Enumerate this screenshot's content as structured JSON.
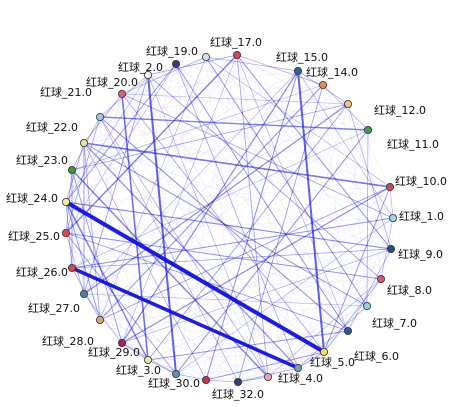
{
  "edge_color": "#1010e6",
  "nodes": [
    {
      "id": "n17",
      "label": "红球_17.0",
      "color": "#d9455a"
    },
    {
      "id": "n15",
      "label": "红球_15.0",
      "color": "#2e5fa8"
    },
    {
      "id": "n14",
      "label": "红球_14.0",
      "color": "#e8885a"
    },
    {
      "id": "n12",
      "label": "红球_12.0",
      "color": "#f2c46b"
    },
    {
      "id": "n11",
      "label": "红球_11.0",
      "color": "#3aa14a"
    },
    {
      "id": "n10",
      "label": "红球_10.0",
      "color": "#d64550"
    },
    {
      "id": "n1",
      "label": "红球_1.0",
      "color": "#9fd3e6"
    },
    {
      "id": "n9",
      "label": "红球_9.0",
      "color": "#23507a"
    },
    {
      "id": "n8",
      "label": "红球_8.0",
      "color": "#d45a63"
    },
    {
      "id": "n7",
      "label": "红球_7.0",
      "color": "#8fd0e0"
    },
    {
      "id": "n6",
      "label": "红球_6.0",
      "color": "#2a5f86"
    },
    {
      "id": "n5",
      "label": "红球_5.0",
      "color": "#f4e24a"
    },
    {
      "id": "n4",
      "label": "红球_4.0",
      "color": "#6fa0c0"
    },
    {
      "id": "n32",
      "label": "红球_32.0",
      "color": "#f0a0b8"
    },
    {
      "id": "n31",
      "label": "",
      "color": "#2e3f78"
    },
    {
      "id": "n30a",
      "label": "",
      "color": "#d12f3a"
    },
    {
      "id": "n30",
      "label": "红球_30.0",
      "color": "#5f8fb0"
    },
    {
      "id": "n3",
      "label": "红球_3.0",
      "color": "#e0e89a"
    },
    {
      "id": "n29",
      "label": "红球_29.0",
      "color": "#b02050"
    },
    {
      "id": "n28",
      "label": "红球_28.0",
      "color": "#e8a070"
    },
    {
      "id": "n27",
      "label": "红球_27.0",
      "color": "#4f7fa8"
    },
    {
      "id": "n26",
      "label": "红球_26.0",
      "color": "#d9455a"
    },
    {
      "id": "n25",
      "label": "红球_25.0",
      "color": "#e04850"
    },
    {
      "id": "n24",
      "label": "红球_24.0",
      "color": "#f0f0a0"
    },
    {
      "id": "n23",
      "label": "红球_23.0",
      "color": "#3a9a40"
    },
    {
      "id": "n22",
      "label": "红球_22.0",
      "color": "#e0e8a0"
    },
    {
      "id": "n21",
      "label": "红球_21.0",
      "color": "#9fc8e8"
    },
    {
      "id": "n20",
      "label": "红球_20.0",
      "color": "#e0607a"
    },
    {
      "id": "n2",
      "label": "红球_2.0",
      "color": "#f4f4f4"
    },
    {
      "id": "n19",
      "label": "红球_19.0",
      "color": "#3a3a80"
    },
    {
      "id": "n18",
      "label": "",
      "color": "#c8e0f0"
    }
  ],
  "edges": [
    {
      "from": "n24",
      "to": "n5",
      "weight": 4
    },
    {
      "from": "n26",
      "to": "n4",
      "weight": 3.5
    },
    {
      "from": "n2",
      "to": "n30",
      "weight": 2
    },
    {
      "from": "n15",
      "to": "n5",
      "weight": 2
    },
    {
      "from": "n22",
      "to": "n10",
      "weight": 1.6
    },
    {
      "from": "n21",
      "to": "n11",
      "weight": 1.4
    },
    {
      "from": "n20",
      "to": "n3",
      "weight": 1.6
    },
    {
      "from": "n17",
      "to": "n25",
      "weight": 1.4
    },
    {
      "from": "n24",
      "to": "n3",
      "weight": 1.4
    },
    {
      "from": "n23",
      "to": "n32",
      "weight": 1.4
    },
    {
      "from": "n22",
      "to": "n4",
      "weight": 1.2
    },
    {
      "from": "n12",
      "to": "n27",
      "weight": 1.2
    },
    {
      "from": "n10",
      "to": "n29",
      "weight": 1.2
    },
    {
      "from": "n9",
      "to": "n24",
      "weight": 1.2
    },
    {
      "from": "n1",
      "to": "n26",
      "weight": 1
    },
    {
      "from": "n8",
      "to": "n25",
      "weight": 1
    },
    {
      "from": "n7",
      "to": "n22",
      "weight": 1
    },
    {
      "from": "n6",
      "to": "n21",
      "weight": 1
    },
    {
      "from": "n15",
      "to": "n29",
      "weight": 1.2
    },
    {
      "from": "n14",
      "to": "n28",
      "weight": 1
    },
    {
      "from": "n11",
      "to": "n30",
      "weight": 1
    },
    {
      "from": "n17",
      "to": "n9",
      "weight": 1
    },
    {
      "from": "n19",
      "to": "n6",
      "weight": 1
    },
    {
      "from": "n18",
      "to": "n7",
      "weight": 1
    },
    {
      "from": "n2",
      "to": "n8",
      "weight": 0.8
    },
    {
      "from": "n20",
      "to": "n1",
      "weight": 0.8
    },
    {
      "from": "n3",
      "to": "n12",
      "weight": 0.8
    },
    {
      "from": "n31",
      "to": "n14",
      "weight": 0.8
    },
    {
      "from": "n30a",
      "to": "n15",
      "weight": 1
    },
    {
      "from": "n32",
      "to": "n17",
      "weight": 0.8
    },
    {
      "from": "n4",
      "to": "n19",
      "weight": 0.8
    },
    {
      "from": "n5",
      "to": "n20",
      "weight": 0.8
    },
    {
      "from": "n28",
      "to": "n10",
      "weight": 0.8
    },
    {
      "from": "n27",
      "to": "n2",
      "weight": 0.8
    },
    {
      "from": "n23",
      "to": "n12",
      "weight": 0.8
    },
    {
      "from": "n25",
      "to": "n6",
      "weight": 0.8
    },
    {
      "from": "n26",
      "to": "n9",
      "weight": 0.7
    },
    {
      "from": "n21",
      "to": "n32",
      "weight": 0.7
    },
    {
      "from": "n22",
      "to": "n28",
      "weight": 0.7
    },
    {
      "from": "n24",
      "to": "n19",
      "weight": 0.9
    },
    {
      "from": "n23",
      "to": "n29",
      "weight": 0.9
    },
    {
      "from": "n25",
      "to": "n30",
      "weight": 0.9
    },
    {
      "from": "n24",
      "to": "n28",
      "weight": 0.9
    },
    {
      "from": "n22",
      "to": "n27",
      "weight": 0.9
    },
    {
      "from": "n23",
      "to": "n26",
      "weight": 0.9
    },
    {
      "from": "n21",
      "to": "n25",
      "weight": 0.7
    },
    {
      "from": "n6",
      "to": "n3",
      "weight": 0.9
    },
    {
      "from": "n5",
      "to": "n30a",
      "weight": 0.9
    },
    {
      "from": "n5",
      "to": "n4",
      "weight": 0.9
    },
    {
      "from": "n4",
      "to": "n31",
      "weight": 0.8
    },
    {
      "from": "n3",
      "to": "n30",
      "weight": 0.8
    },
    {
      "from": "n29",
      "to": "n3",
      "weight": 0.8
    },
    {
      "from": "n8",
      "to": "n5",
      "weight": 0.8
    },
    {
      "from": "n7",
      "to": "n4",
      "weight": 0.7
    },
    {
      "from": "n9",
      "to": "n6",
      "weight": 0.7
    },
    {
      "from": "n10",
      "to": "n5",
      "weight": 0.9
    },
    {
      "from": "n11",
      "to": "n7",
      "weight": 0.7
    },
    {
      "from": "n12",
      "to": "n9",
      "weight": 0.7
    },
    {
      "from": "n14",
      "to": "n11",
      "weight": 0.7
    },
    {
      "from": "n15",
      "to": "n12",
      "weight": 0.7
    },
    {
      "from": "n17",
      "to": "n14",
      "weight": 0.7
    },
    {
      "from": "n18",
      "to": "n15",
      "weight": 0.7
    },
    {
      "from": "n2",
      "to": "n17",
      "weight": 0.7
    },
    {
      "from": "n20",
      "to": "n18",
      "weight": 0.7
    },
    {
      "from": "n21",
      "to": "n2",
      "weight": 0.7
    },
    {
      "from": "n22",
      "to": "n20",
      "weight": 0.7
    },
    {
      "from": "n23",
      "to": "n21",
      "weight": 0.7
    },
    {
      "from": "n24",
      "to": "n22",
      "weight": 0.7
    },
    {
      "from": "n25",
      "to": "n23",
      "weight": 0.7
    },
    {
      "from": "n26",
      "to": "n24",
      "weight": 0.7
    },
    {
      "from": "n27",
      "to": "n25",
      "weight": 0.7
    },
    {
      "from": "n28",
      "to": "n26",
      "weight": 0.7
    },
    {
      "from": "n29",
      "to": "n27",
      "weight": 0.7
    },
    {
      "from": "n30",
      "to": "n29",
      "weight": 0.7
    },
    {
      "from": "n30a",
      "to": "n30",
      "weight": 0.7
    },
    {
      "from": "n31",
      "to": "n30a",
      "weight": 0.7
    },
    {
      "from": "n32",
      "to": "n31",
      "weight": 0.7
    },
    {
      "from": "n1",
      "to": "n8",
      "weight": 0.6
    },
    {
      "from": "n10",
      "to": "n1",
      "weight": 0.6
    },
    {
      "from": "n2",
      "to": "n24",
      "weight": 0.6
    },
    {
      "from": "n19",
      "to": "n25",
      "weight": 0.6
    },
    {
      "from": "n18",
      "to": "n10",
      "weight": 0.6
    },
    {
      "from": "n17",
      "to": "n6",
      "weight": 0.6
    },
    {
      "from": "n14",
      "to": "n23",
      "weight": 0.6
    },
    {
      "from": "n12",
      "to": "n20",
      "weight": 0.6
    },
    {
      "from": "n11",
      "to": "n26",
      "weight": 0.6
    },
    {
      "from": "n9",
      "to": "n29",
      "weight": 0.6
    },
    {
      "from": "n8",
      "to": "n32",
      "weight": 0.6
    },
    {
      "from": "n7",
      "to": "n27",
      "weight": 0.6
    },
    {
      "from": "n1",
      "to": "n30",
      "weight": 0.6
    },
    {
      "from": "n15",
      "to": "n1",
      "weight": 0.6
    },
    {
      "from": "n32",
      "to": "n2",
      "weight": 0.6
    },
    {
      "from": "n31",
      "to": "n21",
      "weight": 0.6
    },
    {
      "from": "n30a",
      "to": "n22",
      "weight": 0.6
    },
    {
      "from": "n28",
      "to": "n18",
      "weight": 0.6
    },
    {
      "from": "n27",
      "to": "n15",
      "weight": 0.6
    },
    {
      "from": "n29",
      "to": "n17",
      "weight": 0.6
    }
  ]
}
